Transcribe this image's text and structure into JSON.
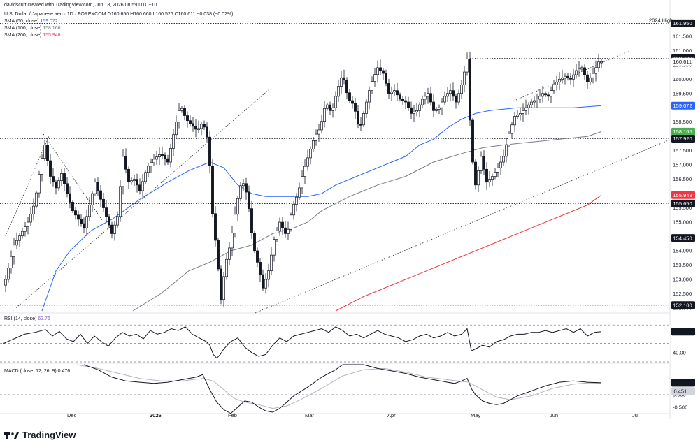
{
  "header": {
    "author_line": "davidscutt created with TradingView.com, Jun 18, 2026 08:59 UTC+10",
    "symbol_line": "U.S. Dollar / Japanese Yen · 1D · FOREXCOM  O160.650  H160.660  L160.526  C160.611  −0.038 (−0.02%)",
    "sma50": {
      "label": "SMA (50, close)",
      "value": "159.072",
      "color": "#2962ff"
    },
    "sma100": {
      "label": "SMA (100, close)",
      "value": "158.166",
      "color": "#787b86"
    },
    "sma200": {
      "label": "SMA (200, close)",
      "value": "155.948",
      "color": "#f23645"
    }
  },
  "brand": {
    "name": "TradingView"
  },
  "chart_data": [
    {
      "type": "candlestick",
      "title": "U.S. Dollar / Japanese Yen · 1D · FOREXCOM",
      "ylim": [
        151.9,
        162.4
      ],
      "y_ticks": [
        "152.000",
        "152.500",
        "153.000",
        "153.500",
        "154.000",
        "154.500",
        "155.000",
        "155.500",
        "156.000",
        "156.500",
        "157.000",
        "157.500",
        "158.000",
        "158.500",
        "159.000",
        "159.500",
        "160.000",
        "160.500",
        "161.000",
        "161.500",
        "162.000"
      ],
      "x_ticks": [
        {
          "label": "Dec",
          "x": 102
        },
        {
          "label": "2026",
          "x": 220
        },
        {
          "label": "Feb",
          "x": 332
        },
        {
          "label": "Mar",
          "x": 442
        },
        {
          "label": "Apr",
          "x": 560
        },
        {
          "label": "May",
          "x": 679
        },
        {
          "label": "Jun",
          "x": 792
        },
        {
          "label": "Jul",
          "x": 910
        }
      ],
      "horizontal_levels": [
        {
          "value": 161.95,
          "label": "2024 High"
        },
        {
          "value": 160.73,
          "label": ""
        },
        {
          "value": 157.92,
          "label": ""
        },
        {
          "value": 155.65,
          "label": ""
        },
        {
          "value": 154.45,
          "label": ""
        },
        {
          "value": 152.1,
          "label": ""
        }
      ],
      "price_tags": [
        {
          "value": 161.95,
          "text": "161.950",
          "bg": "#131722",
          "fg": "#ffffff"
        },
        {
          "value": 160.73,
          "text": "160.730",
          "bg": "#131722",
          "fg": "#ffffff"
        },
        {
          "value": 160.611,
          "text": "160.611",
          "bg": "#ffffff",
          "fg": "#131722"
        },
        {
          "value": 159.072,
          "text": "159.072",
          "bg": "#2962ff",
          "fg": "#ffffff"
        },
        {
          "value": 158.166,
          "text": "158.166",
          "bg": "#4caf50",
          "fg": "#ffffff"
        },
        {
          "value": 157.92,
          "text": "157.920",
          "bg": "#131722",
          "fg": "#ffffff"
        },
        {
          "value": 155.948,
          "text": "155.948",
          "bg": "#f23645",
          "fg": "#ffffff"
        },
        {
          "value": 155.65,
          "text": "155.650",
          "bg": "#131722",
          "fg": "#ffffff"
        },
        {
          "value": 154.45,
          "text": "154.450",
          "bg": "#131722",
          "fg": "#ffffff"
        },
        {
          "value": 152.1,
          "text": "152.100",
          "bg": "#131722",
          "fg": "#ffffff"
        }
      ],
      "close_series_key": [
        [
          8,
          153.0
        ],
        [
          20,
          154.2
        ],
        [
          30,
          154.6
        ],
        [
          40,
          155.0
        ],
        [
          50,
          155.7
        ],
        [
          58,
          157.0
        ],
        [
          64,
          157.7
        ],
        [
          72,
          156.6
        ],
        [
          80,
          156.2
        ],
        [
          88,
          156.7
        ],
        [
          96,
          156.0
        ],
        [
          104,
          155.4
        ],
        [
          112,
          155.1
        ],
        [
          120,
          154.8
        ],
        [
          128,
          155.6
        ],
        [
          136,
          156.4
        ],
        [
          144,
          155.8
        ],
        [
          152,
          155.2
        ],
        [
          160,
          154.6
        ],
        [
          168,
          155.2
        ],
        [
          176,
          157.3
        ],
        [
          184,
          156.4
        ],
        [
          192,
          156.5
        ],
        [
          200,
          156.1
        ],
        [
          210,
          156.9
        ],
        [
          220,
          157.2
        ],
        [
          230,
          157.4
        ],
        [
          240,
          157.1
        ],
        [
          250,
          158.3
        ],
        [
          258,
          159.1
        ],
        [
          266,
          158.6
        ],
        [
          274,
          158.4
        ],
        [
          282,
          158.2
        ],
        [
          290,
          158.5
        ],
        [
          298,
          157.8
        ],
        [
          304,
          155.3
        ],
        [
          310,
          153.9
        ],
        [
          316,
          152.3
        ],
        [
          322,
          153.5
        ],
        [
          330,
          154.3
        ],
        [
          338,
          155.6
        ],
        [
          346,
          156.5
        ],
        [
          354,
          155.9
        ],
        [
          362,
          154.2
        ],
        [
          370,
          153.4
        ],
        [
          376,
          152.7
        ],
        [
          384,
          153.3
        ],
        [
          392,
          154.4
        ],
        [
          400,
          155.0
        ],
        [
          410,
          154.5
        ],
        [
          418,
          155.5
        ],
        [
          426,
          156.0
        ],
        [
          434,
          156.8
        ],
        [
          442,
          157.4
        ],
        [
          450,
          158.0
        ],
        [
          458,
          158.3
        ],
        [
          466,
          159.2
        ],
        [
          474,
          158.8
        ],
        [
          482,
          159.6
        ],
        [
          490,
          160.2
        ],
        [
          498,
          159.3
        ],
        [
          506,
          159.1
        ],
        [
          514,
          158.2
        ],
        [
          522,
          159.0
        ],
        [
          530,
          159.8
        ],
        [
          540,
          160.4
        ],
        [
          548,
          160.2
        ],
        [
          556,
          159.5
        ],
        [
          564,
          159.6
        ],
        [
          572,
          159.3
        ],
        [
          580,
          159.2
        ],
        [
          588,
          158.8
        ],
        [
          596,
          158.9
        ],
        [
          604,
          159.3
        ],
        [
          612,
          159.5
        ],
        [
          620,
          158.9
        ],
        [
          628,
          159.0
        ],
        [
          636,
          159.4
        ],
        [
          644,
          159.6
        ],
        [
          652,
          159.2
        ],
        [
          660,
          159.8
        ],
        [
          668,
          160.7
        ],
        [
          674,
          157.5
        ],
        [
          680,
          156.3
        ],
        [
          688,
          157.3
        ],
        [
          696,
          156.4
        ],
        [
          704,
          156.6
        ],
        [
          712,
          156.9
        ],
        [
          720,
          157.3
        ],
        [
          728,
          158.1
        ],
        [
          736,
          158.7
        ],
        [
          744,
          158.8
        ],
        [
          752,
          159.0
        ],
        [
          760,
          159.2
        ],
        [
          768,
          159.3
        ],
        [
          776,
          159.5
        ],
        [
          784,
          159.4
        ],
        [
          792,
          159.8
        ],
        [
          800,
          160.0
        ],
        [
          808,
          160.1
        ],
        [
          816,
          160.0
        ],
        [
          824,
          160.3
        ],
        [
          832,
          160.4
        ],
        [
          840,
          159.9
        ],
        [
          848,
          160.2
        ],
        [
          856,
          160.6
        ],
        [
          860,
          160.611
        ]
      ],
      "sma50_key": [
        [
          60,
          151.9
        ],
        [
          80,
          153.3
        ],
        [
          100,
          154.0
        ],
        [
          130,
          154.7
        ],
        [
          160,
          155.1
        ],
        [
          200,
          155.8
        ],
        [
          240,
          156.4
        ],
        [
          270,
          156.8
        ],
        [
          290,
          157.0
        ],
        [
          300,
          157.1
        ],
        [
          320,
          156.9
        ],
        [
          340,
          156.3
        ],
        [
          360,
          156.0
        ],
        [
          380,
          155.9
        ],
        [
          400,
          155.9
        ],
        [
          420,
          155.9
        ],
        [
          440,
          155.9
        ],
        [
          460,
          156.0
        ],
        [
          480,
          156.3
        ],
        [
          500,
          156.5
        ],
        [
          520,
          156.7
        ],
        [
          540,
          156.9
        ],
        [
          560,
          157.1
        ],
        [
          580,
          157.3
        ],
        [
          600,
          157.7
        ],
        [
          620,
          157.9
        ],
        [
          640,
          158.3
        ],
        [
          660,
          158.6
        ],
        [
          680,
          158.8
        ],
        [
          700,
          158.9
        ],
        [
          740,
          159.0
        ],
        [
          780,
          159.0
        ],
        [
          820,
          159.0
        ],
        [
          860,
          159.072
        ]
      ],
      "sma100_key": [
        [
          190,
          151.9
        ],
        [
          230,
          152.5
        ],
        [
          270,
          153.3
        ],
        [
          300,
          153.6
        ],
        [
          330,
          154.0
        ],
        [
          360,
          154.2
        ],
        [
          390,
          154.6
        ],
        [
          420,
          154.8
        ],
        [
          440,
          155.0
        ],
        [
          460,
          155.4
        ],
        [
          500,
          155.9
        ],
        [
          540,
          156.3
        ],
        [
          580,
          156.6
        ],
        [
          620,
          157.1
        ],
        [
          660,
          157.4
        ],
        [
          690,
          157.6
        ],
        [
          720,
          157.7
        ],
        [
          760,
          157.8
        ],
        [
          800,
          157.9
        ],
        [
          840,
          158.0
        ],
        [
          860,
          158.166
        ]
      ],
      "sma200_key": [
        [
          480,
          151.9
        ],
        [
          520,
          152.4
        ],
        [
          560,
          152.8
        ],
        [
          600,
          153.2
        ],
        [
          640,
          153.6
        ],
        [
          680,
          154.0
        ],
        [
          720,
          154.4
        ],
        [
          760,
          154.8
        ],
        [
          800,
          155.2
        ],
        [
          840,
          155.6
        ],
        [
          860,
          155.948
        ]
      ]
    },
    {
      "type": "line",
      "title": "RSI (14, close)",
      "value_label": "62.76",
      "current": 62.76,
      "ylim": [
        30,
        80
      ],
      "y_ticks": [
        "40.00"
      ],
      "levels": [
        70,
        50,
        30
      ],
      "x": [
        5,
        20,
        35,
        50,
        65,
        75,
        85,
        95,
        105,
        115,
        125,
        135,
        145,
        155,
        165,
        175,
        185,
        195,
        205,
        215,
        225,
        235,
        245,
        255,
        265,
        275,
        285,
        295,
        300,
        305,
        310,
        315,
        320,
        330,
        340,
        350,
        360,
        370,
        380,
        390,
        400,
        410,
        420,
        430,
        440,
        450,
        460,
        470,
        480,
        490,
        500,
        510,
        520,
        530,
        540,
        550,
        560,
        570,
        580,
        590,
        600,
        610,
        620,
        630,
        640,
        650,
        660,
        668,
        674,
        680,
        690,
        700,
        710,
        720,
        730,
        740,
        750,
        760,
        770,
        780,
        790,
        800,
        810,
        820,
        830,
        840,
        850,
        860
      ],
      "values": [
        50,
        55,
        60,
        62,
        65,
        58,
        63,
        55,
        52,
        60,
        50,
        58,
        52,
        47,
        56,
        62,
        58,
        60,
        55,
        64,
        60,
        62,
        66,
        64,
        68,
        60,
        56,
        52,
        48,
        38,
        34,
        38,
        44,
        52,
        56,
        46,
        40,
        36,
        38,
        48,
        56,
        52,
        58,
        60,
        62,
        64,
        66,
        62,
        68,
        64,
        58,
        60,
        56,
        60,
        64,
        60,
        58,
        56,
        52,
        54,
        58,
        60,
        56,
        58,
        62,
        58,
        60,
        66,
        42,
        44,
        48,
        46,
        52,
        54,
        58,
        60,
        60,
        62,
        62,
        64,
        62,
        64,
        66,
        62,
        66,
        58,
        62,
        62.76
      ]
    },
    {
      "type": "line",
      "title": "MACD (close, 12, 26, 9)",
      "value_label": "0.476",
      "macd_current": 0.476,
      "signal_current": 0.451,
      "ylim": [
        -0.7,
        1.2
      ],
      "y_ticks": [
        "0.000",
        "-0.500"
      ],
      "macd_x": [
        120,
        140,
        160,
        180,
        200,
        220,
        240,
        260,
        280,
        290,
        300,
        310,
        320,
        330,
        340,
        350,
        360,
        370,
        380,
        390,
        400,
        410,
        420,
        440,
        460,
        480,
        490,
        520,
        540,
        560,
        580,
        600,
        620,
        640,
        650,
        660,
        668,
        675,
        680,
        690,
        700,
        710,
        720,
        730,
        740,
        760,
        780,
        800,
        820,
        840,
        860
      ],
      "macd": [
        1.2,
        1.0,
        0.7,
        0.55,
        0.5,
        0.45,
        0.5,
        0.6,
        0.7,
        0.8,
        0.2,
        -0.3,
        -0.6,
        -0.75,
        -0.5,
        -0.25,
        -0.3,
        -0.5,
        -0.65,
        -0.7,
        -0.55,
        -0.3,
        -0.05,
        0.3,
        0.7,
        1.0,
        1.2,
        1.2,
        1.05,
        0.95,
        0.85,
        0.7,
        0.6,
        0.5,
        0.45,
        0.55,
        0.65,
        0.2,
        0.0,
        -0.25,
        -0.35,
        -0.4,
        -0.35,
        -0.2,
        -0.05,
        0.15,
        0.35,
        0.5,
        0.55,
        0.5,
        0.476
      ],
      "signal_x": [
        110,
        140,
        170,
        200,
        230,
        260,
        290,
        305,
        320,
        335,
        350,
        370,
        390,
        410,
        430,
        460,
        490,
        520,
        550,
        580,
        610,
        640,
        670,
        690,
        710,
        730,
        760,
        790,
        820,
        840,
        860
      ],
      "signal": [
        1.2,
        1.05,
        0.85,
        0.65,
        0.55,
        0.55,
        0.65,
        0.55,
        0.2,
        -0.15,
        -0.3,
        -0.4,
        -0.55,
        -0.45,
        -0.2,
        0.25,
        0.75,
        1.0,
        1.05,
        0.9,
        0.7,
        0.6,
        0.5,
        0.2,
        -0.1,
        -0.2,
        -0.05,
        0.25,
        0.42,
        0.47,
        0.451
      ]
    }
  ]
}
